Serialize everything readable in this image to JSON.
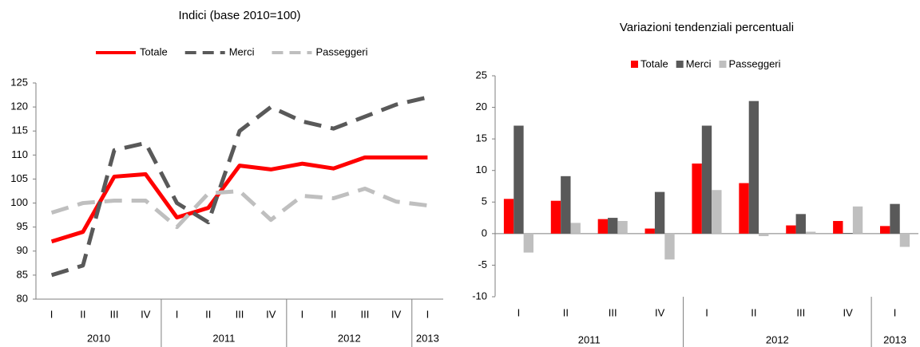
{
  "chart_data": [
    {
      "type": "line",
      "title": "Indici (base 2010=100)",
      "categories": [
        "I",
        "II",
        "III",
        "IV",
        "I",
        "II",
        "III",
        "IV",
        "I",
        "II",
        "III",
        "IV",
        "I"
      ],
      "category_groups": [
        "2010",
        "2010",
        "2010",
        "2010",
        "2011",
        "2011",
        "2011",
        "2011",
        "2012",
        "2012",
        "2012",
        "2012",
        "2013"
      ],
      "series": [
        {
          "name": "Totale",
          "color": "#ff0000",
          "dashed": false,
          "values": [
            92,
            94,
            105.5,
            106,
            97,
            99,
            107.8,
            107,
            108.2,
            107.2,
            109.5,
            109.5,
            109.5
          ]
        },
        {
          "name": "Merci",
          "color": "#595959",
          "dashed": true,
          "values": [
            85,
            87,
            111,
            112.5,
            100,
            96,
            115,
            120,
            117,
            115.5,
            118,
            120.5,
            122
          ]
        },
        {
          "name": "Passeggeri",
          "color": "#bfbfbf",
          "dashed": true,
          "values": [
            98,
            100,
            100.5,
            100.5,
            95,
            102,
            102.5,
            96.5,
            101.5,
            101,
            103,
            100.3,
            99.5
          ]
        }
      ],
      "ylim": [
        80,
        125
      ],
      "yticks": [
        80,
        85,
        90,
        95,
        100,
        105,
        110,
        115,
        120,
        125
      ],
      "grid": false
    },
    {
      "type": "bar",
      "title": "Variazioni tendenziali percentuali",
      "categories": [
        "I",
        "II",
        "III",
        "IV",
        "I",
        "II",
        "III",
        "IV",
        "I"
      ],
      "category_groups": [
        "2011",
        "2011",
        "2011",
        "2011",
        "2012",
        "2012",
        "2012",
        "2012",
        "2013"
      ],
      "series": [
        {
          "name": "Totale",
          "color": "#ff0000",
          "values": [
            5.5,
            5.2,
            2.3,
            0.8,
            11.1,
            8.0,
            1.3,
            2.0,
            1.2
          ]
        },
        {
          "name": "Merci",
          "color": "#595959",
          "values": [
            17.1,
            9.1,
            2.5,
            6.6,
            17.1,
            21.0,
            3.1,
            0.1,
            4.7
          ]
        },
        {
          "name": "Passeggeri",
          "color": "#bfbfbf",
          "values": [
            -3.0,
            1.7,
            2.0,
            -4.1,
            6.9,
            -0.4,
            0.3,
            4.3,
            -2.1
          ]
        }
      ],
      "ylim": [
        -10,
        25
      ],
      "yticks": [
        -10,
        -5,
        0,
        5,
        10,
        15,
        20,
        25
      ],
      "grid": false
    }
  ]
}
